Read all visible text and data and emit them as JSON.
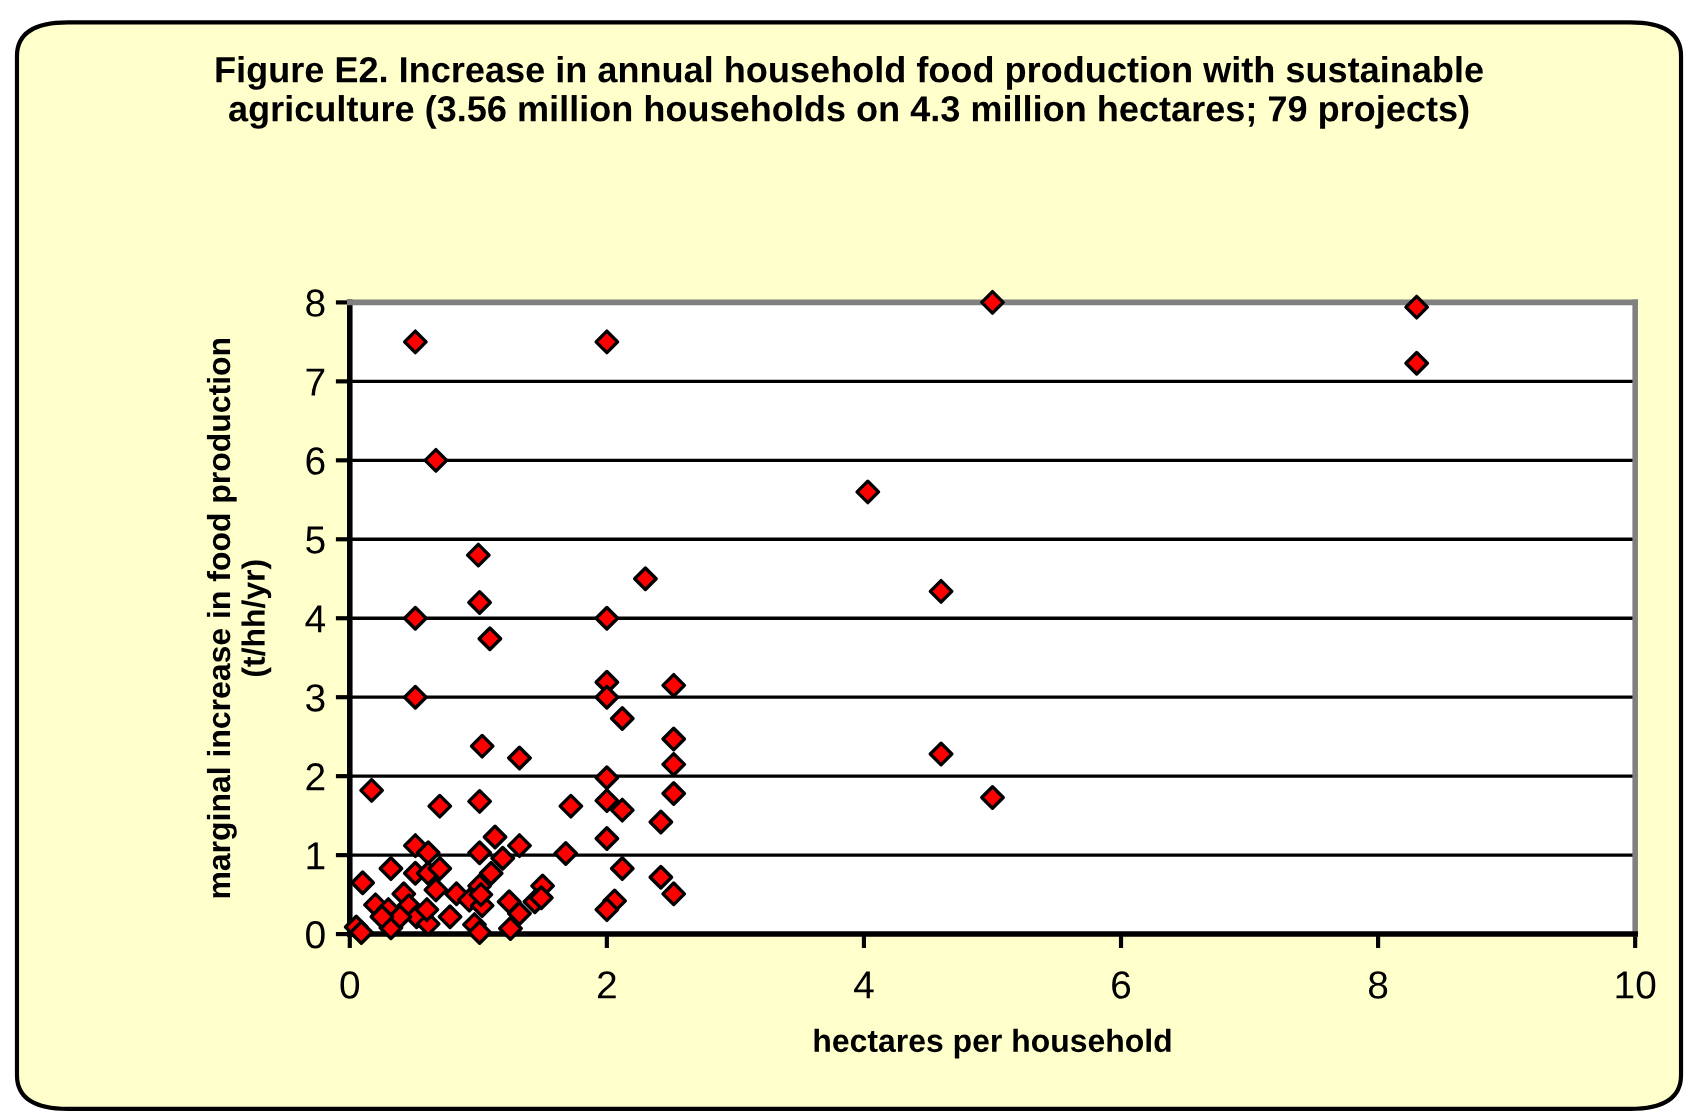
{
  "chart_data": {
    "type": "scatter",
    "title": "Figure E2. Increase in annual household food production with sustainable agriculture (3.56 million households on 4.3 million hectares; 79 projects)",
    "xlabel": "hectares per household",
    "ylabel": "marginal increase in food production (t/hh/yr)",
    "xlim": [
      0,
      10
    ],
    "xticks": [
      0,
      2,
      4,
      6,
      8,
      10
    ],
    "ylim": [
      0,
      8
    ],
    "yticks": [
      0,
      1,
      2,
      3,
      4,
      5,
      6,
      7,
      8
    ],
    "grid": "y",
    "marker": "diamond",
    "series": [
      {
        "color": "#ff0000",
        "x": [
          0.51,
          1.01,
          1.09,
          0.51,
          2.0,
          2.0,
          2.0,
          2.52,
          2.12,
          1.03,
          1.32,
          2.52,
          2.52,
          0.17,
          2.0,
          0.7,
          1.01,
          1.72,
          2.0,
          2.12,
          2.52,
          2.42,
          2.0,
          0.51,
          0.61,
          1.13,
          1.19,
          1.32,
          1.01,
          1.68,
          0.32,
          0.51,
          0.61,
          0.7,
          1.1,
          2.12,
          2.42,
          2.52,
          0.1,
          1.5,
          0.2,
          0.3,
          0.42,
          0.46,
          0.67,
          0.83,
          1.01,
          0.93,
          1.03,
          1.24,
          1.32,
          1.44,
          1.49,
          2.06,
          2.0,
          0.05,
          0.09,
          0.32,
          0.52,
          0.61,
          0.78,
          0.97,
          1.01,
          1.25,
          0.39,
          0.25,
          0.6,
          1.02,
          0.51,
          0.67,
          1.0,
          2.0,
          4.03,
          2.3,
          5.0,
          8.3,
          8.3,
          4.6,
          4.6,
          5.0
        ],
        "values": [
          4.0,
          4.2,
          3.74,
          3.0,
          4.0,
          3.19,
          3.0,
          3.15,
          2.73,
          2.38,
          2.23,
          2.47,
          2.15,
          1.82,
          1.98,
          1.62,
          1.68,
          1.62,
          1.69,
          1.57,
          1.78,
          1.42,
          1.21,
          1.12,
          1.03,
          1.23,
          0.96,
          1.12,
          1.03,
          1.02,
          0.83,
          0.77,
          0.77,
          0.83,
          0.77,
          0.83,
          0.72,
          0.51,
          0.65,
          0.61,
          0.37,
          0.31,
          0.51,
          0.36,
          0.56,
          0.51,
          0.61,
          0.43,
          0.36,
          0.41,
          0.26,
          0.41,
          0.46,
          0.42,
          0.31,
          0.09,
          0.02,
          0.08,
          0.22,
          0.13,
          0.22,
          0.12,
          0.02,
          0.07,
          0.22,
          0.22,
          0.31,
          0.5,
          7.5,
          6.0,
          4.8,
          7.5,
          5.6,
          4.5,
          8.0,
          7.94,
          7.23,
          4.34,
          2.28,
          1.73
        ]
      }
    ]
  }
}
